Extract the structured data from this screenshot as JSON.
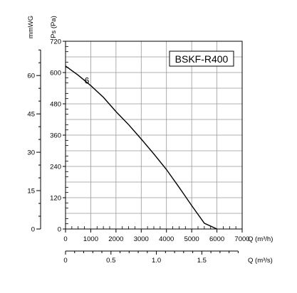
{
  "chart_data": {
    "type": "line",
    "model_label": "BSKF-R400",
    "x": {
      "label": "Q (m³/h)",
      "range": [
        0,
        7000
      ],
      "ticks": [
        "0",
        "1000",
        "2000",
        "3000",
        "4000",
        "5000",
        "6000",
        "7000"
      ]
    },
    "x2": {
      "label": "Q (m³/s)",
      "range": [
        0,
        1.944
      ],
      "ticks": [
        "0",
        "0.5",
        "1.0",
        "1.5"
      ]
    },
    "y": {
      "label": "Ps (Pa)",
      "range": [
        0,
        720
      ],
      "ticks": [
        "0",
        "120",
        "240",
        "360",
        "480",
        "600",
        "720"
      ]
    },
    "y2": {
      "label": "mmWG",
      "range": [
        0,
        73.4
      ],
      "ticks": [
        "0",
        "15",
        "30",
        "45",
        "60"
      ]
    },
    "grid": true,
    "series": [
      {
        "name": "6",
        "x": [
          0,
          500,
          1000,
          1500,
          2000,
          2500,
          3000,
          3500,
          4000,
          4500,
          5000,
          5500,
          6000
        ],
        "y": [
          625,
          590,
          550,
          505,
          450,
          400,
          345,
          288,
          228,
          160,
          90,
          22,
          0
        ]
      }
    ]
  }
}
